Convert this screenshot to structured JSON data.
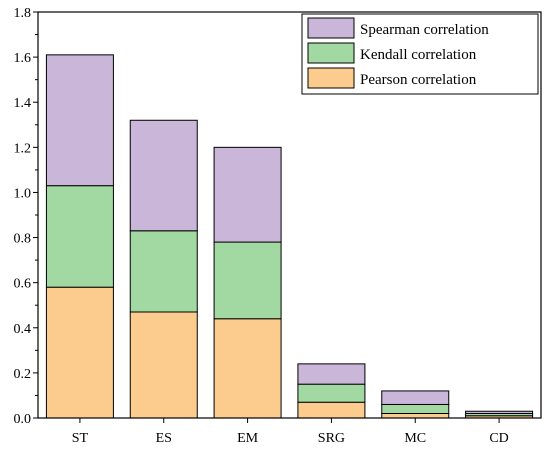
{
  "chart_data": {
    "type": "bar",
    "stacked": true,
    "categories": [
      "ST",
      "ES",
      "EM",
      "SRG",
      "MC",
      "CD"
    ],
    "series": [
      {
        "name": "Pearson correlation",
        "values": [
          0.58,
          0.47,
          0.44,
          0.07,
          0.02,
          0.01
        ],
        "color": "#FCCB8E"
      },
      {
        "name": "Kendall correlation",
        "values": [
          0.45,
          0.36,
          0.34,
          0.08,
          0.04,
          0.01
        ],
        "color": "#A2D9A2"
      },
      {
        "name": "Spearman correlation",
        "values": [
          0.58,
          0.49,
          0.42,
          0.09,
          0.06,
          0.01
        ],
        "color": "#C9B6D9"
      }
    ],
    "title": "",
    "xlabel": "",
    "ylabel": "",
    "ylim": [
      0,
      1.8
    ],
    "yticks": [
      "0.0",
      "0.2",
      "0.4",
      "0.6",
      "0.8",
      "1.0",
      "1.2",
      "1.4",
      "1.6",
      "1.8"
    ],
    "grid": false,
    "legend_position": "top-right",
    "legend_order": [
      "Spearman correlation",
      "Kendall correlation",
      "Pearson correlation"
    ]
  }
}
